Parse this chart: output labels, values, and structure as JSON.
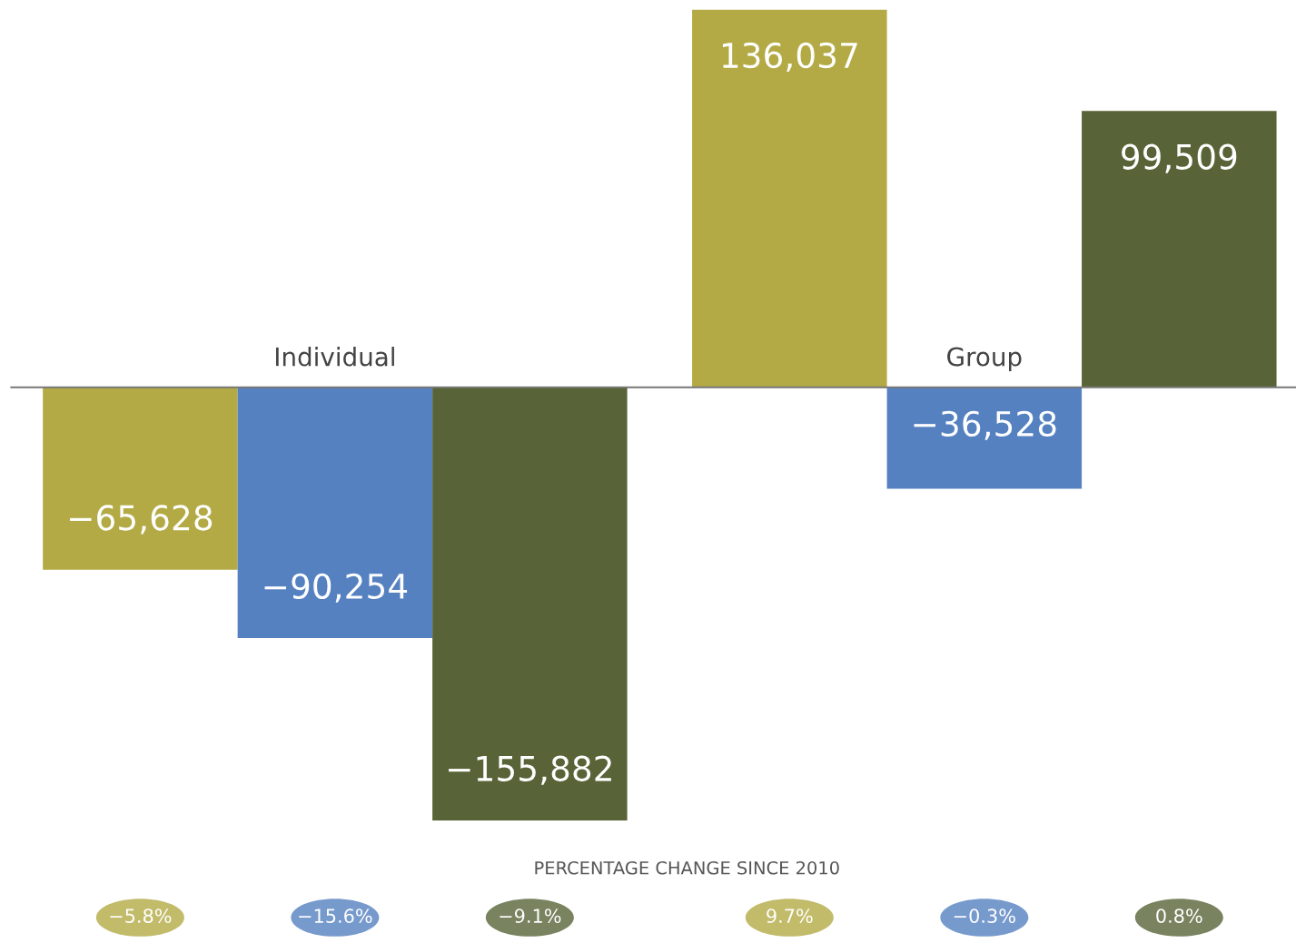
{
  "chart_data": {
    "type": "bar",
    "categories": [
      "Individual",
      "Group"
    ],
    "series": [
      {
        "color": "#b3aa45",
        "values": [
          -65628,
          136037
        ],
        "value_labels": [
          "−65,628",
          "136,037"
        ]
      },
      {
        "color": "#5581c1",
        "values": [
          -90254,
          -36528
        ],
        "value_labels": [
          "−90,254",
          "−36,528"
        ]
      },
      {
        "color": "#586437",
        "values": [
          -155882,
          99509
        ],
        "value_labels": [
          "−155,882",
          "99,509"
        ]
      }
    ],
    "tick_labels": false,
    "annotations": [
      "PERCENTAGE CHANGE SINCE 2010",
      "−5.8%",
      "−15.6%",
      "−9.1%",
      "9.7%",
      "−0.3%",
      "0.8%"
    ]
  }
}
